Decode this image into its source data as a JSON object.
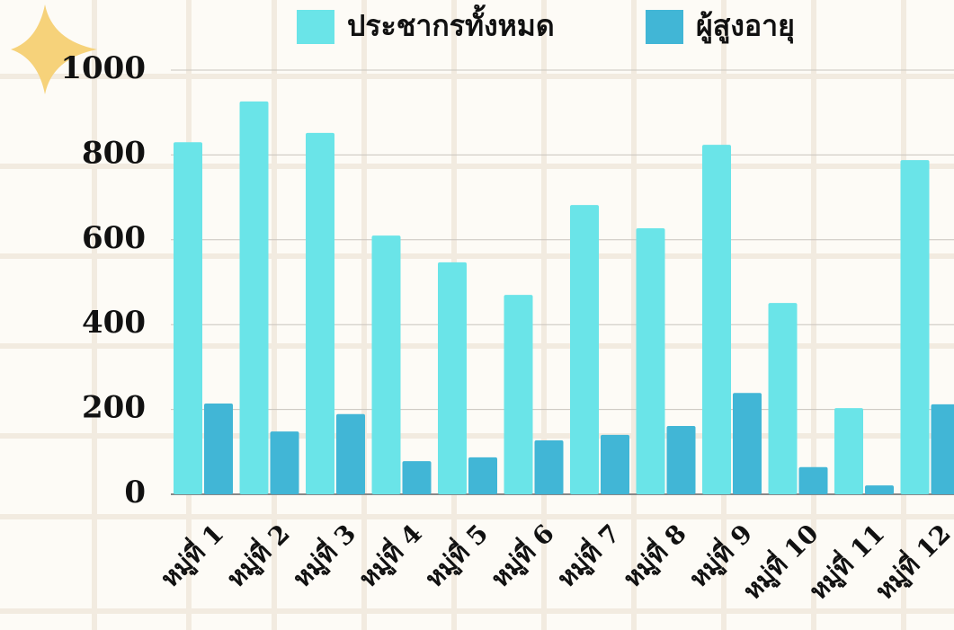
{
  "chart_data": {
    "type": "bar",
    "categories": [
      "หมู่ที่ 1",
      "หมู่ที่ 2",
      "หมู่ที่ 3",
      "หมู่ที่ 4",
      "หมู่ที่ 5",
      "หมู่ที่ 6",
      "หมู่ที่ 7",
      "หมู่ที่ 8",
      "หมู่ที่ 9",
      "หมู่ที่ 10",
      "หมู่ที่ 11",
      "หมู่ที่ 12"
    ],
    "series": [
      {
        "name": "ประชากรทั้งหมด",
        "color": "#6ae4e8",
        "values": [
          830,
          926,
          852,
          610,
          547,
          470,
          682,
          627,
          824,
          451,
          203,
          788
        ]
      },
      {
        "name": "ผู้สูงอายุ",
        "color": "#41b6d6",
        "values": [
          214,
          148,
          189,
          78,
          87,
          127,
          140,
          161,
          239,
          64,
          21,
          212
        ]
      }
    ],
    "ylim": [
      0,
      1000
    ],
    "yticks": [
      0,
      200,
      400,
      600,
      800,
      1000
    ],
    "grid": true,
    "legend": "top"
  }
}
